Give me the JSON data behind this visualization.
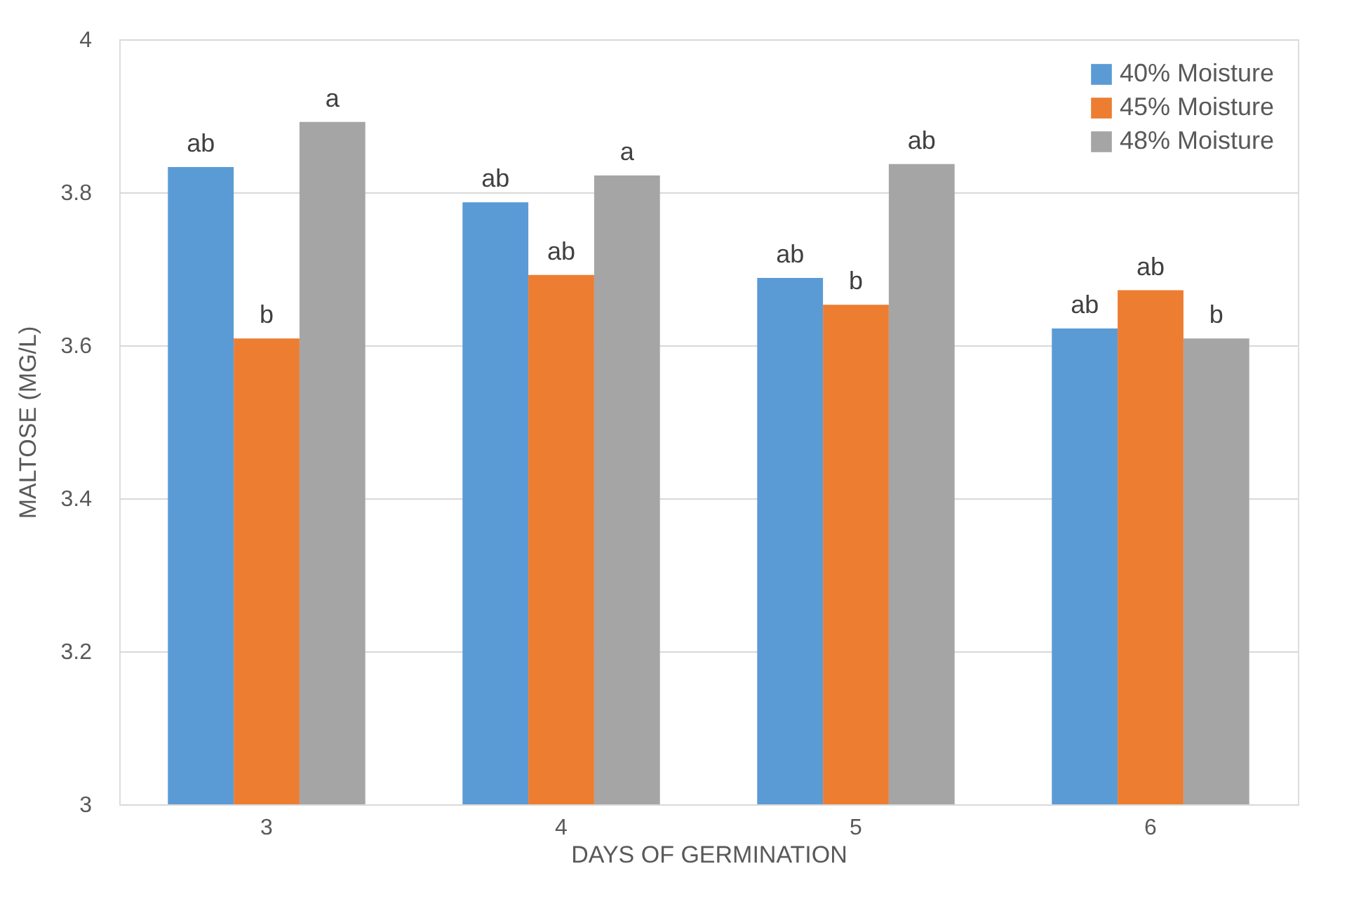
{
  "chart_data": {
    "type": "bar",
    "xlabel": "DAYS OF GERMINATION",
    "ylabel": "MALTOSE (MG/L)",
    "categories": [
      "3",
      "4",
      "5",
      "6"
    ],
    "series": [
      {
        "name": "40% Moisture",
        "color": "#5b9bd5",
        "values": [
          3.833,
          3.787,
          3.688,
          3.622
        ],
        "value_labels": [
          "ab",
          "ab",
          "ab",
          "ab"
        ]
      },
      {
        "name": "45% Moisture",
        "color": "#ed7d31",
        "values": [
          3.609,
          3.692,
          3.653,
          3.672
        ],
        "value_labels": [
          "b",
          "ab",
          "b",
          "ab"
        ]
      },
      {
        "name": "48% Moisture",
        "color": "#a5a5a5",
        "values": [
          3.892,
          3.822,
          3.837,
          3.609
        ],
        "value_labels": [
          "a",
          "a",
          "ab",
          "b"
        ]
      }
    ],
    "ylim": [
      3,
      4
    ],
    "yticks": [
      3,
      3.2,
      3.4,
      3.6,
      3.8,
      4
    ],
    "grid": "y",
    "legend": "top right"
  }
}
